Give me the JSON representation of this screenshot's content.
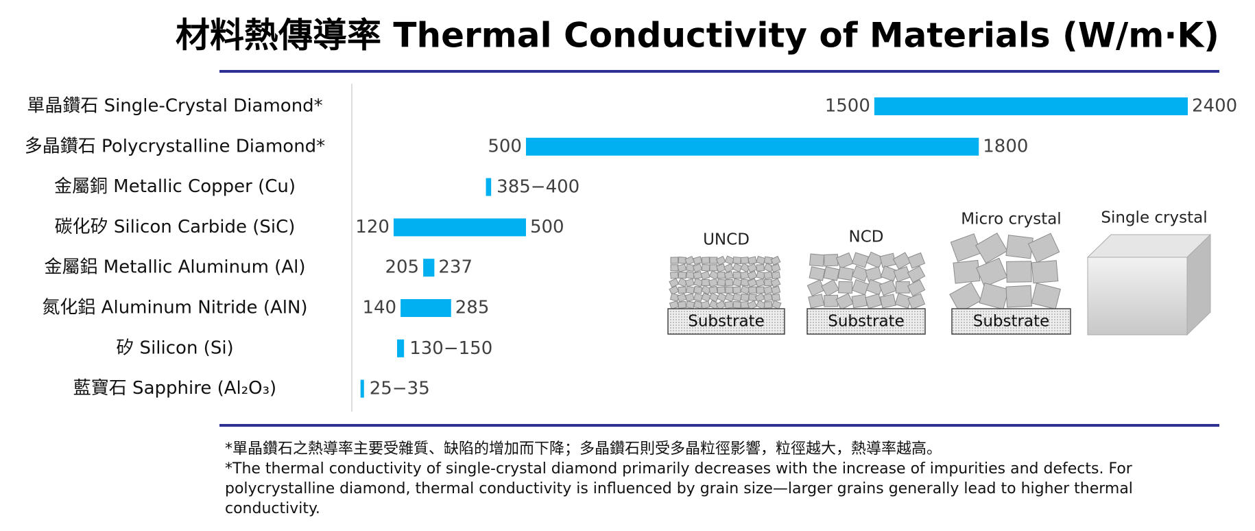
{
  "chart_data": {
    "type": "range-bar",
    "title": "材料熱傳導率 Thermal Conductivity of Materials (W/m·K)",
    "categories": [
      "單晶鑽石 Single-Crystal Diamond*",
      "多晶鑽石 Polycrystalline Diamond*",
      "金屬銅 Metallic Copper (Cu)",
      "碳化矽 Silicon Carbide (SiC)",
      "金屬鋁 Metallic Aluminum (Al)",
      "氮化鋁 Aluminum Nitride (AlN)",
      "矽 Silicon (Si)",
      "藍寶石 Sapphire (Al₂O₃)"
    ],
    "low": [
      1500,
      500,
      385,
      120,
      205,
      140,
      130,
      25
    ],
    "high": [
      2400,
      1800,
      400,
      500,
      237,
      285,
      150,
      35
    ],
    "separator": "−",
    "color": "#00b0f0",
    "xlim": [
      0,
      2400
    ]
  },
  "illustration": {
    "labels": [
      "UNCD",
      "NCD",
      "Micro crystal",
      "Single crystal"
    ],
    "substrate": "Substrate"
  },
  "notes": [
    "*單晶鑽石之熱導率主要受雜質、缺陷的增加而下降；多晶鑽石則受多晶粒徑影響，粒徑越大，熱導率越高。",
    "*The thermal conductivity of single-crystal diamond primarily decreases with the increase of impurities and defects. For polycrystalline diamond, thermal conductivity is influenced by grain size—larger grains generally lead to higher thermal conductivity."
  ]
}
